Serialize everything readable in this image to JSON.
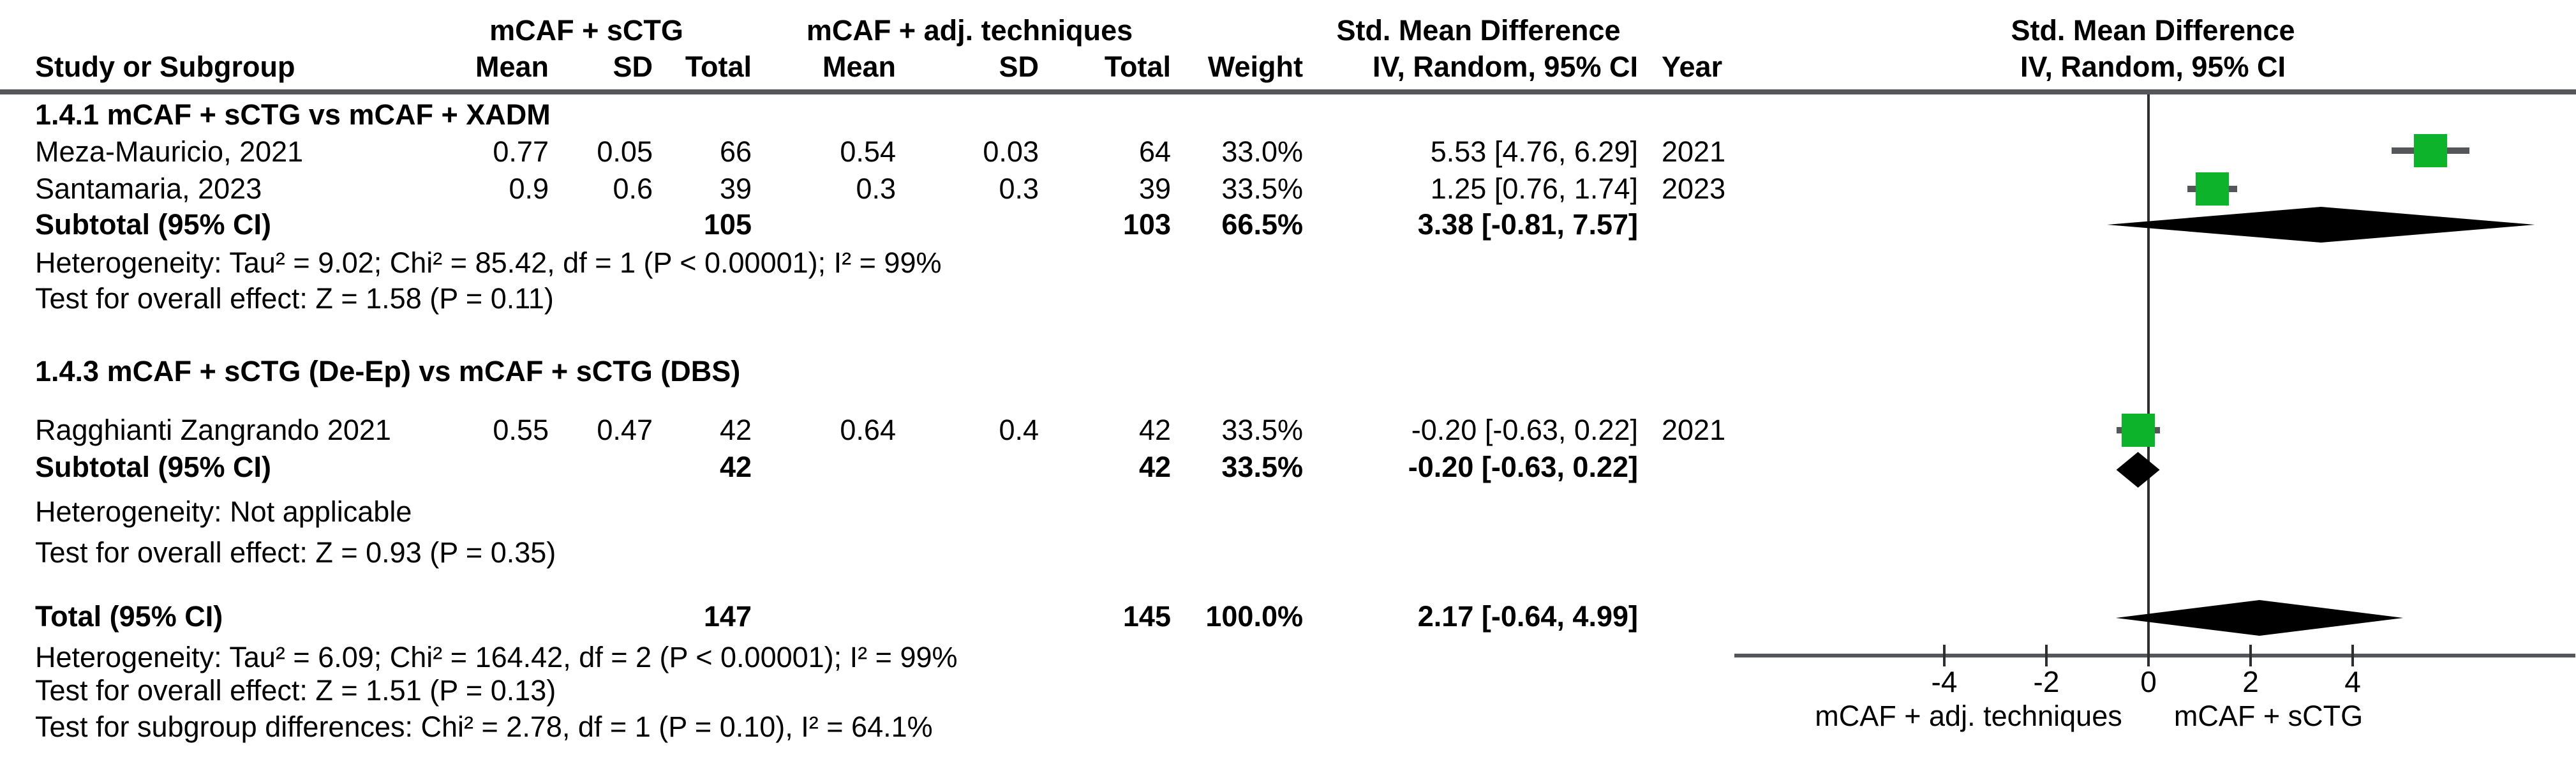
{
  "header": {
    "group1": "mCAF + sCTG",
    "group2": "mCAF + adj. techniques",
    "effect_title": "Std. Mean Difference",
    "col_study": "Study or Subgroup",
    "col_mean": "Mean",
    "col_sd": "SD",
    "col_total": "Total",
    "col_weight": "Weight",
    "col_ci": "IV, Random, 95% CI",
    "col_year": "Year",
    "plot_title_line1": "Std. Mean Difference",
    "plot_title_line2": "IV, Random, 95% CI"
  },
  "sections": [
    {
      "heading": "1.4.1 mCAF + sCTG vs mCAF + XADM",
      "studies": [
        {
          "name": "Meza-Mauricio, 2021",
          "mean1": "0.77",
          "sd1": "0.05",
          "total1": "66",
          "mean2": "0.54",
          "sd2": "0.03",
          "total2": "64",
          "weight": "33.0%",
          "ci": "5.53 [4.76, 6.29]",
          "year": "2021"
        },
        {
          "name": "Santamaria, 2023",
          "mean1": "0.9",
          "sd1": "0.6",
          "total1": "39",
          "mean2": "0.3",
          "sd2": "0.3",
          "total2": "39",
          "weight": "33.5%",
          "ci": "1.25 [0.76, 1.74]",
          "year": "2023"
        }
      ],
      "subtotal": {
        "label": "Subtotal (95% CI)",
        "total1": "105",
        "total2": "103",
        "weight": "66.5%",
        "ci": "3.38 [-0.81, 7.57]"
      },
      "heterogeneity": "Heterogeneity: Tau² = 9.02; Chi² = 85.42, df = 1 (P < 0.00001); I² = 99%",
      "overall_effect": "Test for overall effect: Z = 1.58 (P = 0.11)"
    },
    {
      "heading": "1.4.3 mCAF + sCTG (De-Ep) vs mCAF + sCTG (DBS)",
      "studies": [
        {
          "name": "Ragghianti Zangrando 2021",
          "mean1": "0.55",
          "sd1": "0.47",
          "total1": "42",
          "mean2": "0.64",
          "sd2": "0.4",
          "total2": "42",
          "weight": "33.5%",
          "ci": "-0.20 [-0.63, 0.22]",
          "year": "2021"
        }
      ],
      "subtotal": {
        "label": "Subtotal (95% CI)",
        "total1": "42",
        "total2": "42",
        "weight": "33.5%",
        "ci": "-0.20 [-0.63, 0.22]"
      },
      "heterogeneity": "Heterogeneity: Not applicable",
      "overall_effect": "Test for overall effect: Z = 0.93 (P = 0.35)"
    }
  ],
  "total": {
    "label": "Total (95% CI)",
    "total1": "147",
    "total2": "145",
    "weight": "100.0%",
    "ci": "2.17 [-0.64, 4.99]",
    "heterogeneity": "Heterogeneity: Tau² = 6.09; Chi² = 164.42, df = 2 (P < 0.00001); I² = 99%",
    "overall_effect": "Test for overall effect: Z = 1.51 (P = 0.13)",
    "subgroup_test": "Test for subgroup differences: Chi² = 2.78, df = 1 (P = 0.10), I² = 64.1%"
  },
  "chart_data": {
    "type": "forest",
    "title": "Std. Mean Difference",
    "model": "IV, Random, 95% CI",
    "axis": {
      "ticks": [
        -4,
        -2,
        0,
        2,
        4
      ],
      "range_shown": [
        -4,
        4
      ],
      "left_label": "mCAF + adj. techniques",
      "right_label": "mCAF + sCTG"
    },
    "points": [
      {
        "label": "Meza-Mauricio, 2021",
        "kind": "square",
        "est": 5.53,
        "lo": 4.76,
        "hi": 6.29,
        "weight_pct": 33.0
      },
      {
        "label": "Santamaria, 2023",
        "kind": "square",
        "est": 1.25,
        "lo": 0.76,
        "hi": 1.74,
        "weight_pct": 33.5
      },
      {
        "label": "Subtotal (95% CI) 1.4.1",
        "kind": "diamond",
        "est": 3.38,
        "lo": -0.81,
        "hi": 7.57,
        "weight_pct": 66.5
      },
      {
        "label": "Ragghianti Zangrando 2021",
        "kind": "square",
        "est": -0.2,
        "lo": -0.63,
        "hi": 0.22,
        "weight_pct": 33.5
      },
      {
        "label": "Subtotal (95% CI) 1.4.3",
        "kind": "diamond",
        "est": -0.2,
        "lo": -0.63,
        "hi": 0.22,
        "weight_pct": 33.5
      },
      {
        "label": "Total (95% CI)",
        "kind": "diamond",
        "est": 2.17,
        "lo": -0.64,
        "hi": 4.99,
        "weight_pct": 100.0
      }
    ],
    "colors": {
      "square": "#0db32b",
      "diamond": "#000000",
      "ci_line": "#54565a"
    }
  }
}
